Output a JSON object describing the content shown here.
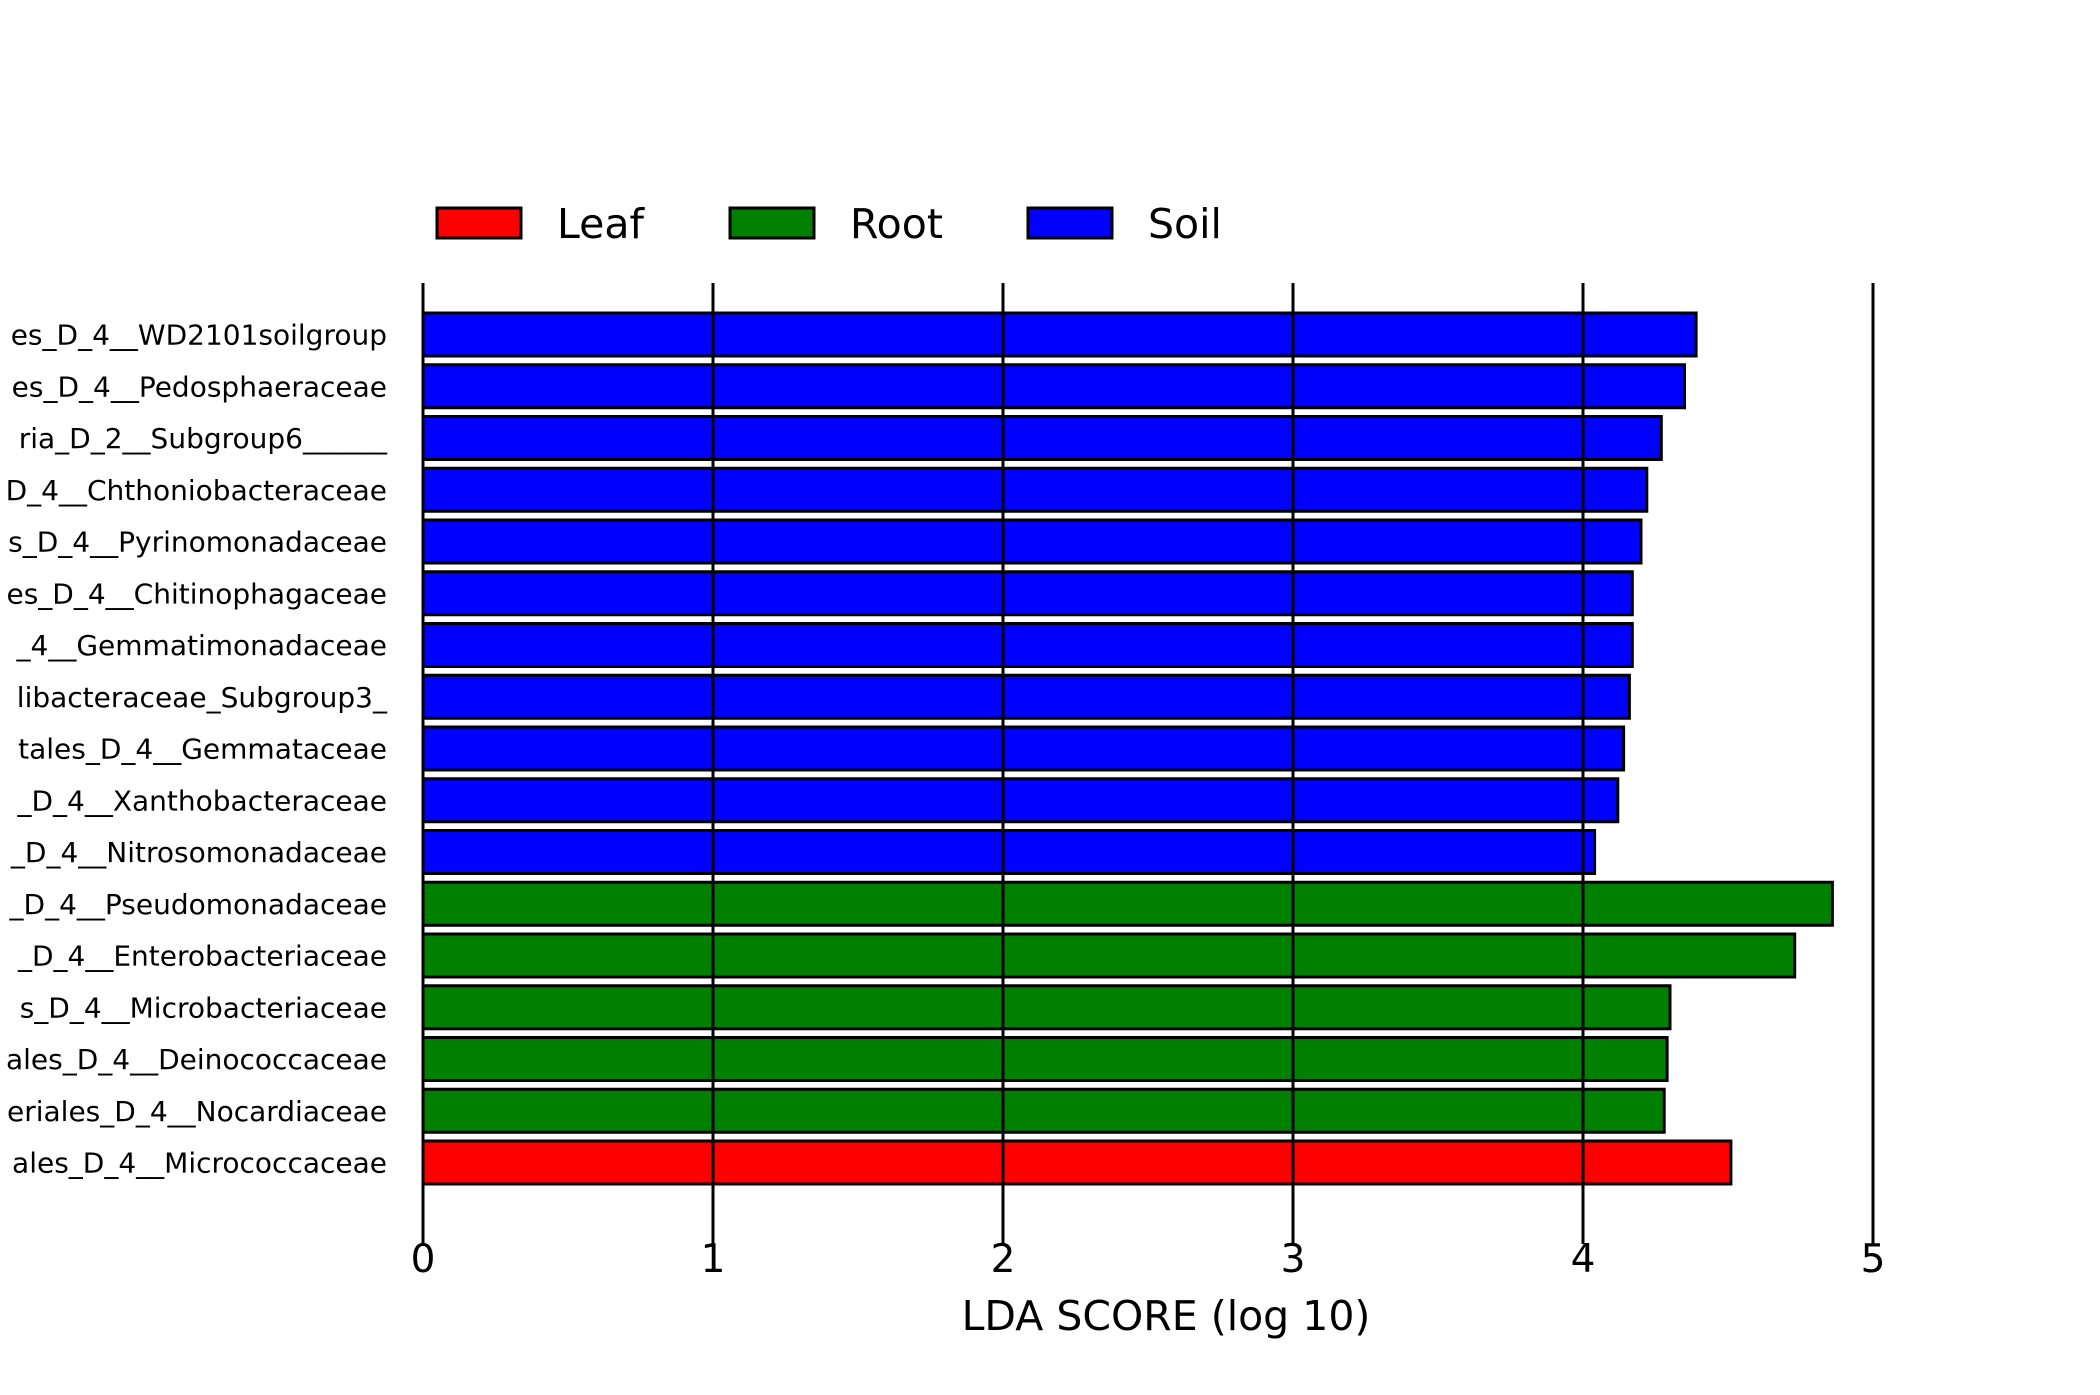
{
  "chart_data": {
    "type": "bar",
    "orientation": "horizontal",
    "xlabel": "LDA SCORE (log 10)",
    "xlim": [
      0,
      5
    ],
    "xticks": [
      0,
      1,
      2,
      3,
      4,
      5
    ],
    "grid": true,
    "legend_position": "top-left",
    "legend": [
      {
        "name": "Leaf",
        "color": "#ff0000"
      },
      {
        "name": "Root",
        "color": "#008000"
      },
      {
        "name": "Soil",
        "color": "#0000ff"
      }
    ],
    "bars": [
      {
        "label": "es_D_4__WD2101soilgroup",
        "value": 4.39,
        "group": "Soil"
      },
      {
        "label": "es_D_4__Pedosphaeraceae",
        "value": 4.35,
        "group": "Soil"
      },
      {
        "label": "ria_D_2__Subgroup6______",
        "value": 4.27,
        "group": "Soil"
      },
      {
        "label": "D_4__Chthoniobacteraceae",
        "value": 4.22,
        "group": "Soil"
      },
      {
        "label": "s_D_4__Pyrinomonadaceae",
        "value": 4.2,
        "group": "Soil"
      },
      {
        "label": "es_D_4__Chitinophagaceae",
        "value": 4.17,
        "group": "Soil"
      },
      {
        "label": "_4__Gemmatimonadaceae",
        "value": 4.17,
        "group": "Soil"
      },
      {
        "label": "libacteraceae_Subgroup3_",
        "value": 4.16,
        "group": "Soil"
      },
      {
        "label": "tales_D_4__Gemmataceae",
        "value": 4.14,
        "group": "Soil"
      },
      {
        "label": "_D_4__Xanthobacteraceae",
        "value": 4.12,
        "group": "Soil"
      },
      {
        "label": "_D_4__Nitrosomonadaceae",
        "value": 4.04,
        "group": "Soil"
      },
      {
        "label": "_D_4__Pseudomonadaceae",
        "value": 4.86,
        "group": "Root"
      },
      {
        "label": "_D_4__Enterobacteriaceae",
        "value": 4.73,
        "group": "Root"
      },
      {
        "label": "s_D_4__Microbacteriaceae",
        "value": 4.3,
        "group": "Root"
      },
      {
        "label": "ales_D_4__Deinococcaceae",
        "value": 4.29,
        "group": "Root"
      },
      {
        "label": "eriales_D_4__Nocardiaceae",
        "value": 4.28,
        "group": "Root"
      },
      {
        "label": "ales_D_4__Micrococcaceae",
        "value": 4.51,
        "group": "Leaf"
      }
    ]
  }
}
